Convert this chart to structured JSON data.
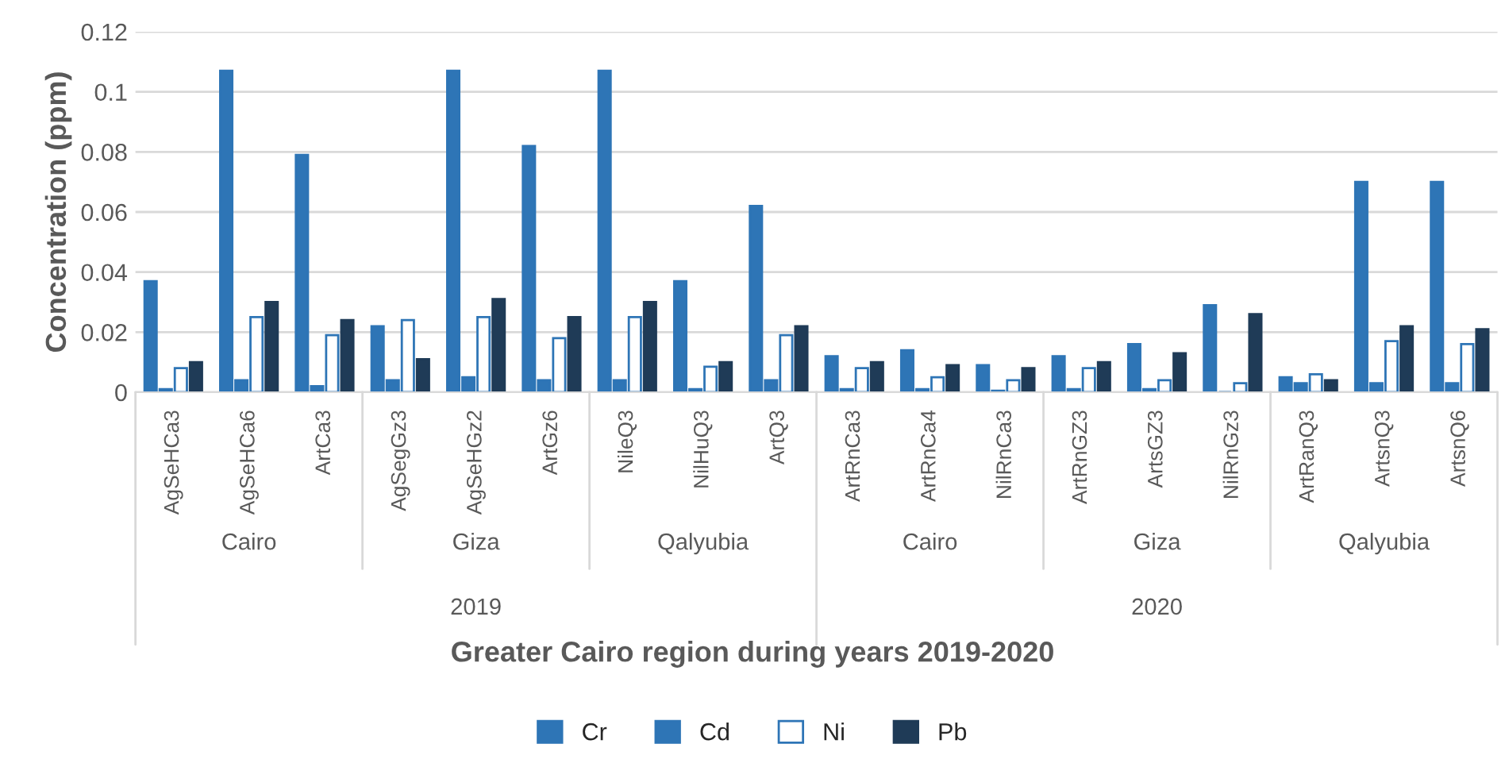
{
  "chart_data": {
    "type": "bar",
    "ylabel": "Concentration (ppm)",
    "xlabel": "Greater Cairo region during years 2019-2020",
    "categories": [
      "AgSeHCa3",
      "AgSeHCa6",
      "ArtCa3",
      "AgSegGz3",
      "AgSeHGz2",
      "ArtGz6",
      "NileQ3",
      "NilHuQ3",
      "ArtQ3",
      "ArtRnCa3",
      "ArtRnCa4",
      "NilRnCa3",
      "ArtRnGZ3",
      "ArtsGZ3",
      "NilRnGz3",
      "ArtRanQ3",
      "ArtsnQ3",
      "ArtsnQ6"
    ],
    "annotations": [
      "Cairo",
      "Giza",
      "Qalyubia",
      "Cairo",
      "Giza",
      "Qalyubia",
      "2019",
      "2020"
    ],
    "series": [
      {
        "name": "Cr",
        "color": "#2e75b6",
        "values": [
          0.037,
          0.107,
          0.079,
          0.022,
          0.107,
          0.082,
          0.107,
          0.037,
          0.062,
          0.012,
          0.014,
          0.009,
          0.012,
          0.016,
          0.029,
          0.005,
          0.07,
          0.07
        ]
      },
      {
        "name": "Cd",
        "color": "#2e75b6",
        "values": [
          0.001,
          0.004,
          0.002,
          0.004,
          0.005,
          0.004,
          0.004,
          0.001,
          0.004,
          0.001,
          0.001,
          0.0005,
          0.001,
          0.001,
          0,
          0.003,
          0.003,
          0.003
        ]
      },
      {
        "name": "Ni",
        "color": "#ffffff",
        "values": [
          0.008,
          0.025,
          0.019,
          0.024,
          0.025,
          0.018,
          0.025,
          0.0085,
          0.019,
          0.008,
          0.005,
          0.004,
          0.008,
          0.004,
          0.003,
          0.006,
          0.017,
          0.016
        ]
      },
      {
        "name": "Pb",
        "color": "#1f3b57",
        "values": [
          0.01,
          0.03,
          0.024,
          0.011,
          0.031,
          0.025,
          0.03,
          0.01,
          0.022,
          0.01,
          0.009,
          0.008,
          0.01,
          0.013,
          0.026,
          0.004,
          0.022,
          0.021
        ]
      }
    ],
    "ylim": [
      0,
      0.12
    ],
    "yticks": [
      0,
      0.02,
      0.04,
      0.06,
      0.08,
      0.1,
      0.12
    ],
    "grid": "y",
    "legend": "bottom"
  }
}
